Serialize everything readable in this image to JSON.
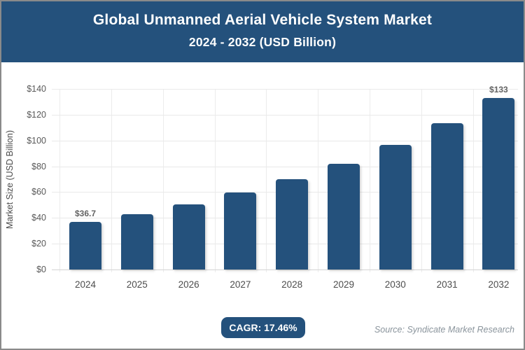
{
  "header": {
    "title_line1": "Global Unmanned Aerial Vehicle System Market",
    "title_line2": "2024 - 2032 (USD Billion)"
  },
  "chart_data": {
    "type": "bar",
    "title": "Global Unmanned Aerial Vehicle System Market 2024 - 2032 (USD Billion)",
    "categories": [
      "2024",
      "2025",
      "2026",
      "2027",
      "2028",
      "2029",
      "2030",
      "2031",
      "2032"
    ],
    "values": [
      36.7,
      43.1,
      50.6,
      59.5,
      69.9,
      82.1,
      96.4,
      113.2,
      133
    ],
    "point_labels": {
      "0": "$36.7",
      "8": "$133"
    },
    "xlabel": "",
    "ylabel": "Market Size (USD Billion)",
    "ylim": [
      0,
      140
    ],
    "ytick_step": 20,
    "ytick_labels": [
      "$0",
      "$20",
      "$40",
      "$60",
      "$80",
      "$100",
      "$120",
      "$140"
    ],
    "grid": true,
    "legend": "none",
    "bar_color": "#24517C"
  },
  "footer": {
    "cagr_label": "CAGR: 17.46%",
    "source": "Source: Syndicate Market Research"
  },
  "colors": {
    "brand_blue": "#24517C",
    "frame_border": "#8a8a8a",
    "gridline": "#e9e9e9",
    "axis_text": "#595959",
    "source_text": "#8a949c",
    "header_text": "#ffffff"
  }
}
